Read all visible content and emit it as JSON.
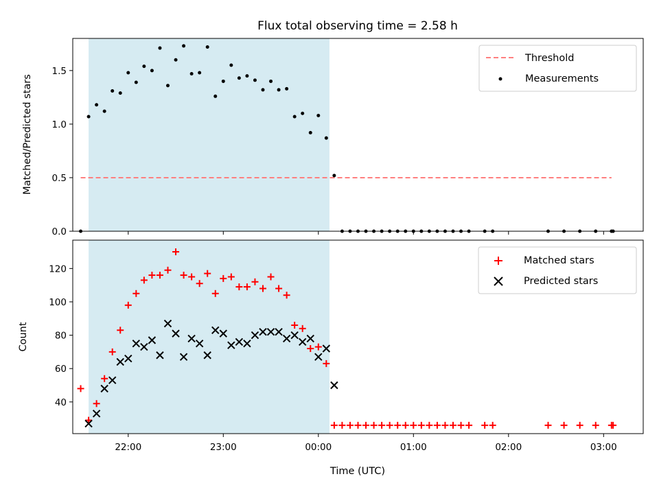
{
  "title": "Flux total observing time = 2.58 h",
  "xlabel": "Time (UTC)",
  "x_ticks": [
    "22:00",
    "23:00",
    "00:00",
    "01:00",
    "02:00",
    "03:00"
  ],
  "colors": {
    "threshold": "#ff7f7f",
    "measurements": "#000000",
    "matched": "#ff0000",
    "predicted": "#000000",
    "span": "#add8e6"
  },
  "chart_data": [
    {
      "type": "scatter",
      "ylabel": "Matched/Predicted stars",
      "xlim": [
        "21:25",
        "03:25"
      ],
      "ylim": [
        0,
        1.8
      ],
      "y_ticks": [
        "0.0",
        "0.5",
        "1.0",
        "1.5"
      ],
      "observing_span": [
        "21:35",
        "00:07"
      ],
      "threshold": {
        "name": "Threshold",
        "y": 0.5,
        "x_range": [
          "21:30",
          "03:05"
        ]
      },
      "legend": [
        "Threshold",
        "Measurements"
      ],
      "legend_position": "upper right",
      "series": [
        {
          "name": "Measurements",
          "marker": "dot",
          "points": [
            [
              "21:30",
              0.0
            ],
            [
              "21:35",
              1.07
            ],
            [
              "21:40",
              1.18
            ],
            [
              "21:45",
              1.12
            ],
            [
              "21:50",
              1.31
            ],
            [
              "21:55",
              1.29
            ],
            [
              "22:00",
              1.48
            ],
            [
              "22:05",
              1.39
            ],
            [
              "22:10",
              1.54
            ],
            [
              "22:15",
              1.5
            ],
            [
              "22:20",
              1.71
            ],
            [
              "22:25",
              1.36
            ],
            [
              "22:30",
              1.6
            ],
            [
              "22:35",
              1.73
            ],
            [
              "22:40",
              1.47
            ],
            [
              "22:45",
              1.48
            ],
            [
              "22:50",
              1.72
            ],
            [
              "22:55",
              1.26
            ],
            [
              "23:00",
              1.4
            ],
            [
              "23:05",
              1.55
            ],
            [
              "23:10",
              1.43
            ],
            [
              "23:15",
              1.45
            ],
            [
              "23:20",
              1.41
            ],
            [
              "23:25",
              1.32
            ],
            [
              "23:30",
              1.4
            ],
            [
              "23:35",
              1.32
            ],
            [
              "23:40",
              1.33
            ],
            [
              "23:45",
              1.07
            ],
            [
              "23:50",
              1.1
            ],
            [
              "23:55",
              0.92
            ],
            [
              "00:00",
              1.08
            ],
            [
              "00:05",
              0.87
            ],
            [
              "00:10",
              0.52
            ],
            [
              "00:15",
              0.0
            ],
            [
              "00:20",
              0.0
            ],
            [
              "00:25",
              0.0
            ],
            [
              "00:30",
              0.0
            ],
            [
              "00:35",
              0.0
            ],
            [
              "00:40",
              0.0
            ],
            [
              "00:45",
              0.0
            ],
            [
              "00:50",
              0.0
            ],
            [
              "00:55",
              0.0
            ],
            [
              "01:00",
              0.0
            ],
            [
              "01:05",
              0.0
            ],
            [
              "01:10",
              0.0
            ],
            [
              "01:15",
              0.0
            ],
            [
              "01:20",
              0.0
            ],
            [
              "01:25",
              0.0
            ],
            [
              "01:30",
              0.0
            ],
            [
              "01:35",
              0.0
            ],
            [
              "01:45",
              0.0
            ],
            [
              "01:50",
              0.0
            ],
            [
              "02:25",
              0.0
            ],
            [
              "02:35",
              0.0
            ],
            [
              "02:45",
              0.0
            ],
            [
              "02:55",
              0.0
            ],
            [
              "03:05",
              0.0
            ],
            [
              "03:06",
              0.0
            ]
          ]
        }
      ]
    },
    {
      "type": "scatter",
      "ylabel": "Count",
      "xlim": [
        "21:25",
        "03:25"
      ],
      "ylim": [
        21,
        137
      ],
      "y_ticks": [
        "40",
        "60",
        "80",
        "100",
        "120"
      ],
      "observing_span": [
        "21:35",
        "00:07"
      ],
      "legend": [
        "Matched stars",
        "Predicted stars"
      ],
      "legend_position": "upper right",
      "series": [
        {
          "name": "Matched stars",
          "marker": "plus",
          "points": [
            [
              "21:30",
              48
            ],
            [
              "21:35",
              29
            ],
            [
              "21:40",
              39
            ],
            [
              "21:45",
              54
            ],
            [
              "21:50",
              70
            ],
            [
              "21:55",
              83
            ],
            [
              "22:00",
              98
            ],
            [
              "22:05",
              105
            ],
            [
              "22:10",
              113
            ],
            [
              "22:15",
              116
            ],
            [
              "22:20",
              116
            ],
            [
              "22:25",
              119
            ],
            [
              "22:30",
              130
            ],
            [
              "22:35",
              116
            ],
            [
              "22:40",
              115
            ],
            [
              "22:45",
              111
            ],
            [
              "22:50",
              117
            ],
            [
              "22:55",
              105
            ],
            [
              "23:00",
              114
            ],
            [
              "23:05",
              115
            ],
            [
              "23:10",
              109
            ],
            [
              "23:15",
              109
            ],
            [
              "23:20",
              112
            ],
            [
              "23:25",
              108
            ],
            [
              "23:30",
              115
            ],
            [
              "23:35",
              108
            ],
            [
              "23:40",
              104
            ],
            [
              "23:45",
              86
            ],
            [
              "23:50",
              84
            ],
            [
              "23:55",
              72
            ],
            [
              "00:00",
              73
            ],
            [
              "00:05",
              63
            ],
            [
              "00:10",
              26
            ],
            [
              "00:15",
              26
            ],
            [
              "00:20",
              26
            ],
            [
              "00:25",
              26
            ],
            [
              "00:30",
              26
            ],
            [
              "00:35",
              26
            ],
            [
              "00:40",
              26
            ],
            [
              "00:45",
              26
            ],
            [
              "00:50",
              26
            ],
            [
              "00:55",
              26
            ],
            [
              "01:00",
              26
            ],
            [
              "01:05",
              26
            ],
            [
              "01:10",
              26
            ],
            [
              "01:15",
              26
            ],
            [
              "01:20",
              26
            ],
            [
              "01:25",
              26
            ],
            [
              "01:30",
              26
            ],
            [
              "01:35",
              26
            ],
            [
              "01:45",
              26
            ],
            [
              "01:50",
              26
            ],
            [
              "02:25",
              26
            ],
            [
              "02:35",
              26
            ],
            [
              "02:45",
              26
            ],
            [
              "02:55",
              26
            ],
            [
              "03:05",
              26
            ],
            [
              "03:06",
              26
            ]
          ]
        },
        {
          "name": "Predicted stars",
          "marker": "x",
          "points": [
            [
              "21:35",
              27
            ],
            [
              "21:40",
              33
            ],
            [
              "21:45",
              48
            ],
            [
              "21:50",
              53
            ],
            [
              "21:55",
              64
            ],
            [
              "22:00",
              66
            ],
            [
              "22:05",
              75
            ],
            [
              "22:10",
              73
            ],
            [
              "22:15",
              77
            ],
            [
              "22:20",
              68
            ],
            [
              "22:25",
              87
            ],
            [
              "22:30",
              81
            ],
            [
              "22:35",
              67
            ],
            [
              "22:40",
              78
            ],
            [
              "22:45",
              75
            ],
            [
              "22:50",
              68
            ],
            [
              "22:55",
              83
            ],
            [
              "23:00",
              81
            ],
            [
              "23:05",
              74
            ],
            [
              "23:10",
              76
            ],
            [
              "23:15",
              75
            ],
            [
              "23:20",
              80
            ],
            [
              "23:25",
              82
            ],
            [
              "23:30",
              82
            ],
            [
              "23:35",
              82
            ],
            [
              "23:40",
              78
            ],
            [
              "23:45",
              80
            ],
            [
              "23:50",
              76
            ],
            [
              "23:55",
              78
            ],
            [
              "00:00",
              67
            ],
            [
              "00:05",
              72
            ],
            [
              "00:10",
              50
            ]
          ]
        }
      ]
    }
  ]
}
